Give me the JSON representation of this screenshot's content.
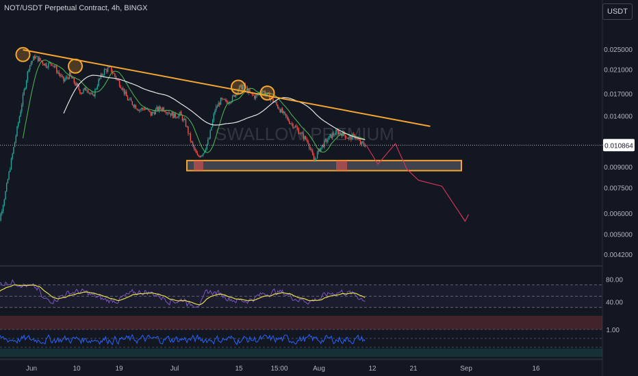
{
  "title": "NOT/USDT Perpetual Contract, 4h, BINGX",
  "currency_button": "USDT",
  "watermark": "SWALLOW PREMIUM",
  "colors": {
    "background": "#131722",
    "up": "#26a69a",
    "down": "#ef5350",
    "trendline": "#f7a531",
    "zone": "#f7a531",
    "rsi": "#7e57c2",
    "rsi_signal": "#e8e04a",
    "osc": "#2962ff",
    "projection": "#e0345d",
    "ma_fast": "#4caf50",
    "ma_slow": "#e6e6e6"
  },
  "chart_data": [
    {
      "type": "line",
      "name": "price",
      "x_ticks": [
        "Jun",
        "10",
        "19",
        "Jul",
        "15",
        "15:00",
        "Aug",
        "12",
        "21",
        "Sep",
        "16"
      ],
      "y_scale": "log",
      "y_ticks": [
        "0.025000",
        "0.021000",
        "0.017000",
        "0.014000",
        "0.011000",
        "0.009000",
        "0.007500",
        "0.006000",
        "0.005000",
        "0.004200"
      ],
      "last_price": "0.010864",
      "series": [
        {
          "values": [
            [
              -2,
              0.0048
            ],
            [
              -1,
              0.0057
            ],
            [
              0,
              0.0072
            ],
            [
              1,
              0.0095
            ],
            [
              2,
              0.0125
            ],
            [
              3,
              0.0165
            ],
            [
              4,
              0.0215
            ],
            [
              5,
              0.0235
            ],
            [
              6,
              0.0227
            ],
            [
              7,
              0.0218
            ],
            [
              8,
              0.0222
            ],
            [
              9,
              0.0205
            ],
            [
              10,
              0.019
            ],
            [
              11,
              0.02
            ],
            [
              12,
              0.0185
            ],
            [
              13,
              0.0172
            ],
            [
              14,
              0.0178
            ],
            [
              15,
              0.0165
            ],
            [
              16,
              0.019
            ],
            [
              17,
              0.0208
            ],
            [
              18,
              0.0212
            ],
            [
              19,
              0.0195
            ],
            [
              20,
              0.018
            ],
            [
              21,
              0.0162
            ],
            [
              22,
              0.0155
            ],
            [
              23,
              0.0148
            ],
            [
              24,
              0.015
            ],
            [
              25,
              0.0142
            ],
            [
              26,
              0.0148
            ],
            [
              27,
              0.015
            ],
            [
              28,
              0.0145
            ],
            [
              29,
              0.014
            ],
            [
              30,
              0.0142
            ],
            [
              31,
              0.013
            ],
            [
              32,
              0.011
            ],
            [
              33,
              0.0098
            ],
            [
              34,
              0.0102
            ],
            [
              35,
              0.0115
            ],
            [
              36,
              0.0148
            ],
            [
              37,
              0.016
            ],
            [
              38,
              0.0158
            ],
            [
              39,
              0.0163
            ],
            [
              40,
              0.0178
            ],
            [
              41,
              0.0182
            ],
            [
              42,
              0.017
            ],
            [
              43,
              0.0165
            ],
            [
              44,
              0.0176
            ],
            [
              45,
              0.0168
            ],
            [
              46,
              0.016
            ],
            [
              47,
              0.015
            ],
            [
              48,
              0.014
            ],
            [
              49,
              0.0132
            ],
            [
              50,
              0.0126
            ],
            [
              51,
              0.0118
            ],
            [
              52,
              0.0112
            ],
            [
              53,
              0.0095
            ],
            [
              54,
              0.0105
            ],
            [
              55,
              0.0112
            ],
            [
              56,
              0.0118
            ],
            [
              57,
              0.0122
            ],
            [
              58,
              0.012
            ],
            [
              59,
              0.0115
            ],
            [
              60,
              0.0118
            ],
            [
              61,
              0.011
            ],
            [
              62,
              0.01086
            ]
          ]
        }
      ],
      "trendline": [
        [
          3,
          0.0249
        ],
        [
          73,
          0.0128
        ]
      ],
      "touch_points": [
        [
          3,
          0.0239
        ],
        [
          12,
          0.0216
        ],
        [
          40,
          0.018
        ],
        [
          45,
          0.0171
        ]
      ],
      "support_zone": [
        0.0087,
        0.0095
      ],
      "projection": [
        [
          62,
          0.01086
        ],
        [
          64,
          0.0092
        ],
        [
          67,
          0.011
        ],
        [
          69,
          0.0088
        ],
        [
          71,
          0.008
        ],
        [
          75,
          0.0076
        ],
        [
          79,
          0.0056
        ]
      ]
    },
    {
      "type": "line",
      "name": "rsi",
      "y_ticks": [
        "80.00",
        "40.00"
      ],
      "ylim": [
        20,
        100
      ],
      "levels": [
        70,
        50,
        30
      ]
    },
    {
      "type": "line",
      "name": "oscillator",
      "y_ticks": [
        "1.00"
      ]
    }
  ]
}
